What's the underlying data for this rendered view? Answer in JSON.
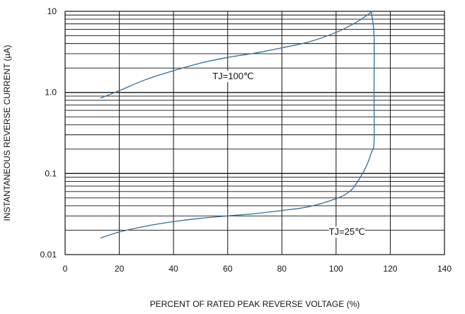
{
  "chart_data": {
    "type": "line",
    "title": "",
    "xlabel": "PERCENT OF RATED PEAK REVERSE VOLTAGE (%)",
    "ylabel": "INSTANTANEOUS REVERSE CURRENT (µA)",
    "xlim": [
      0,
      140
    ],
    "ylim": [
      0.01,
      10
    ],
    "yscale": "log",
    "grid": true,
    "x_ticks": [
      0,
      20,
      40,
      60,
      80,
      100,
      120,
      140
    ],
    "x_tick_labels": [
      "0",
      "20",
      "40",
      "60",
      "80",
      "100",
      "120",
      "140"
    ],
    "y_ticks": [
      0.01,
      0.1,
      1,
      10
    ],
    "y_tick_labels": [
      "0.01",
      "0.1",
      "1.0",
      "10"
    ],
    "series": [
      {
        "name": "TJ=100℃",
        "color": "#2e6f9e",
        "x": [
          13,
          20,
          30,
          40,
          50,
          60,
          70,
          80,
          90,
          100,
          108,
          113
        ],
        "y": [
          0.85,
          1.05,
          1.45,
          1.85,
          2.3,
          2.7,
          3.05,
          3.55,
          4.2,
          5.5,
          7.5,
          9.8
        ]
      },
      {
        "name": "TJ=25℃",
        "color": "#2e6f9e",
        "x": [
          13,
          20,
          30,
          40,
          50,
          60,
          70,
          80,
          90,
          100,
          105,
          108,
          111,
          113,
          114,
          114,
          114,
          113
        ],
        "y": [
          0.016,
          0.019,
          0.0225,
          0.0255,
          0.028,
          0.03,
          0.032,
          0.035,
          0.039,
          0.049,
          0.06,
          0.08,
          0.12,
          0.18,
          0.25,
          1.0,
          5.0,
          9.8
        ]
      }
    ],
    "annotations": [
      {
        "text": "TJ=100℃",
        "x": 62,
        "y": 1.45
      },
      {
        "text": "TJ=25℃",
        "x": 104,
        "y": 0.0175
      }
    ]
  }
}
